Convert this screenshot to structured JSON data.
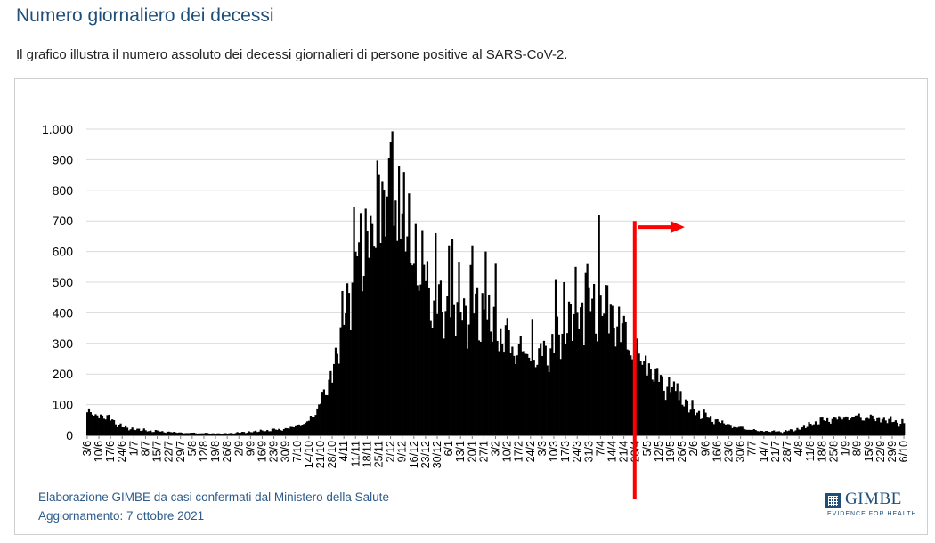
{
  "header": {
    "title": "Numero giornaliero dei decessi",
    "subtitle": "Il grafico illustra il numero assoluto dei decessi giornalieri di persone positive al SARS-CoV-2."
  },
  "footer": {
    "source": "Elaborazione GIMBE da casi confermati dal Ministero della Salute",
    "updated": "Aggiornamento: 7 ottobre 2021"
  },
  "logo": {
    "name": "GIMBE",
    "tagline": "EVIDENCE FOR HEALTH",
    "color": "#1f4e79"
  },
  "colors": {
    "bars": "#000000",
    "marker": "#ff0000",
    "grid": "#d9d9d9"
  },
  "chart_data": {
    "type": "bar",
    "title": "",
    "xlabel": "",
    "ylabel": "",
    "ylim": [
      0,
      1000
    ],
    "yticks": [
      0,
      100,
      200,
      300,
      400,
      500,
      600,
      700,
      800,
      900,
      1000
    ],
    "ytick_labels": [
      "0",
      "100",
      "200",
      "300",
      "400",
      "500",
      "600",
      "700",
      "800",
      "900",
      "1.000"
    ],
    "grid": true,
    "x_start": "2020-06-03",
    "x_end": "2021-10-06",
    "xtick_labels": [
      "3/6",
      "10/6",
      "17/6",
      "24/6",
      "1/7",
      "8/7",
      "15/7",
      "22/7",
      "29/7",
      "5/8",
      "12/8",
      "19/8",
      "26/8",
      "2/9",
      "9/9",
      "16/9",
      "23/9",
      "30/9",
      "7/10",
      "14/10",
      "21/10",
      "28/10",
      "4/11",
      "11/11",
      "18/11",
      "25/11",
      "2/12",
      "9/12",
      "16/12",
      "23/12",
      "30/12",
      "6/1",
      "13/1",
      "20/1",
      "27/1",
      "3/2",
      "10/2",
      "17/2",
      "24/2",
      "3/3",
      "10/3",
      "17/3",
      "24/3",
      "31/3",
      "7/4",
      "14/4",
      "21/4",
      "28/4",
      "5/5",
      "12/5",
      "19/5",
      "26/5",
      "2/6",
      "9/6",
      "16/6",
      "23/6",
      "30/6",
      "7/7",
      "14/7",
      "21/7",
      "28/7",
      "4/8",
      "11/8",
      "18/8",
      "25/8",
      "1/9",
      "8/9",
      "15/9",
      "22/9",
      "29/9",
      "6/10"
    ],
    "trend": [
      [
        "2020-06-03",
        75
      ],
      [
        "2020-06-15",
        60
      ],
      [
        "2020-06-25",
        25
      ],
      [
        "2020-07-10",
        15
      ],
      [
        "2020-08-01",
        8
      ],
      [
        "2020-08-25",
        6
      ],
      [
        "2020-09-10",
        12
      ],
      [
        "2020-10-01",
        22
      ],
      [
        "2020-10-14",
        45
      ],
      [
        "2020-10-24",
        140
      ],
      [
        "2020-11-01",
        300
      ],
      [
        "2020-11-09",
        560
      ],
      [
        "2020-11-15",
        660
      ],
      [
        "2020-11-22",
        720
      ],
      [
        "2020-11-28",
        760
      ],
      [
        "2020-12-03",
        790
      ],
      [
        "2020-12-10",
        650
      ],
      [
        "2020-12-18",
        560
      ],
      [
        "2020-12-26",
        470
      ],
      [
        "2021-01-03",
        410
      ],
      [
        "2021-01-13",
        430
      ],
      [
        "2021-01-24",
        420
      ],
      [
        "2021-02-04",
        350
      ],
      [
        "2021-02-15",
        290
      ],
      [
        "2021-02-28",
        260
      ],
      [
        "2021-03-10",
        300
      ],
      [
        "2021-03-20",
        400
      ],
      [
        "2021-03-30",
        430
      ],
      [
        "2021-04-08",
        430
      ],
      [
        "2021-04-20",
        340
      ],
      [
        "2021-04-30",
        260
      ],
      [
        "2021-05-10",
        200
      ],
      [
        "2021-05-20",
        150
      ],
      [
        "2021-05-31",
        90
      ],
      [
        "2021-06-10",
        60
      ],
      [
        "2021-06-25",
        30
      ],
      [
        "2021-07-10",
        15
      ],
      [
        "2021-07-25",
        12
      ],
      [
        "2021-08-05",
        22
      ],
      [
        "2021-08-15",
        45
      ],
      [
        "2021-08-25",
        55
      ],
      [
        "2021-09-05",
        62
      ],
      [
        "2021-09-15",
        58
      ],
      [
        "2021-09-25",
        52
      ],
      [
        "2021-10-06",
        40
      ]
    ],
    "peaks": [
      [
        "2020-11-13",
        630
      ],
      [
        "2020-11-17",
        740
      ],
      [
        "2020-11-21",
        690
      ],
      [
        "2020-11-25",
        850
      ],
      [
        "2020-11-27",
        830
      ],
      [
        "2020-11-30",
        780
      ],
      [
        "2020-12-03",
        993
      ],
      [
        "2020-12-07",
        880
      ],
      [
        "2020-12-10",
        860
      ],
      [
        "2020-12-13",
        790
      ],
      [
        "2020-12-17",
        690
      ],
      [
        "2020-12-21",
        670
      ],
      [
        "2020-12-29",
        660
      ],
      [
        "2021-01-06",
        620
      ],
      [
        "2021-01-08",
        640
      ],
      [
        "2021-01-20",
        620
      ],
      [
        "2021-01-28",
        600
      ],
      [
        "2021-02-03",
        560
      ],
      [
        "2021-02-25",
        380
      ],
      [
        "2021-03-11",
        510
      ],
      [
        "2021-03-16",
        500
      ],
      [
        "2021-03-23",
        550
      ],
      [
        "2021-03-29",
        530
      ],
      [
        "2021-04-06",
        718
      ],
      [
        "2021-04-11",
        490
      ],
      [
        "2021-04-18",
        420
      ],
      [
        "2021-05-04",
        260
      ],
      [
        "2021-05-11",
        220
      ],
      [
        "2021-05-23",
        170
      ]
    ],
    "marker": {
      "line_date": "2021-04-28",
      "line_top_value": 700,
      "arrow_date_start": "2021-04-30",
      "arrow_date_end": "2021-05-28",
      "arrow_value": 680
    }
  }
}
